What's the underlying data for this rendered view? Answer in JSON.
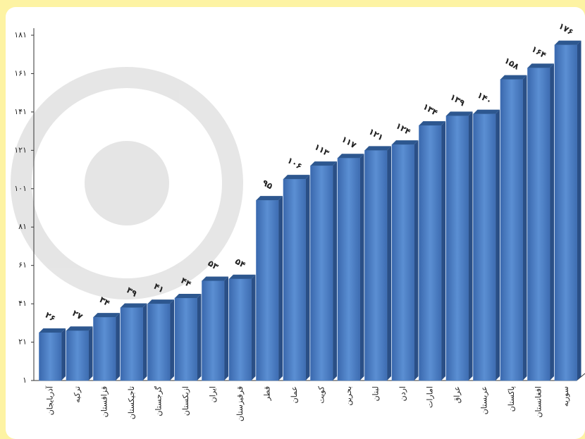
{
  "chart_data": {
    "type": "bar",
    "categories": [
      "آذربایجان",
      "ترکیه",
      "قزاقستان",
      "تاجیکستان",
      "گرجستان",
      "ازبکستان",
      "ایران",
      "قرقیزستان",
      "قطر",
      "عمان",
      "کویت",
      "بحرین",
      "لبنان",
      "اردن",
      "امارات",
      "عراق",
      "عربستان",
      "پاکستان",
      "افغانستان",
      "سوریه"
    ],
    "values": [
      26,
      27,
      34,
      39,
      41,
      44,
      53,
      54,
      95,
      106,
      113,
      117,
      121,
      124,
      134,
      139,
      140,
      158,
      164,
      176
    ],
    "value_labels": [
      "۲۶",
      "۲۷",
      "۳۴",
      "۳۹",
      "۴۱",
      "۴۴",
      "۵۳",
      "۵۴",
      "۹۵",
      "۱۰۶",
      "۱۱۳",
      "۱۱۷",
      "۱۲۱",
      "۱۲۴",
      "۱۳۴",
      "۱۳۹",
      "۱۴۰",
      "۱۵۸",
      "۱۶۴",
      "۱۷۶"
    ],
    "color": "#4a7cc0",
    "ylim": [
      1,
      181
    ],
    "yticks": [
      {
        "value": 1,
        "label": "۱"
      },
      {
        "value": 21,
        "label": "۲۱"
      },
      {
        "value": 41,
        "label": "۴۱"
      },
      {
        "value": 61,
        "label": "۶۱"
      },
      {
        "value": 81,
        "label": "۸۱"
      },
      {
        "value": 101,
        "label": "۱۰۱"
      },
      {
        "value": 121,
        "label": "۱۲۱"
      },
      {
        "value": 141,
        "label": "۱۴۱"
      },
      {
        "value": 161,
        "label": "۱۶۱"
      },
      {
        "value": 181,
        "label": "۱۸۱"
      }
    ],
    "grid": false
  }
}
